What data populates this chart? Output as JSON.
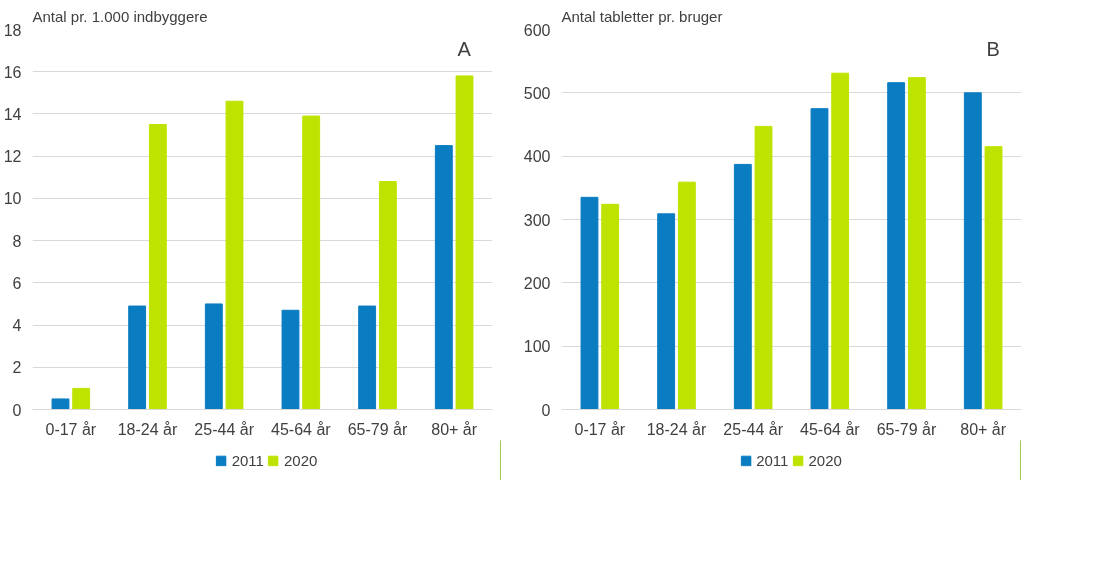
{
  "chart_data": [
    {
      "type": "bar",
      "ylabel": "Antal pr. 1.000 indbyggere",
      "annotations": [
        "A"
      ],
      "categories": [
        "0-17 år",
        "18-24 år",
        "25-44 år",
        "45-64 år",
        "65-79 år",
        "80+ år"
      ],
      "series": [
        {
          "name": "2011",
          "color": "#0a7cc1",
          "values": [
            0.5,
            4.9,
            5.0,
            4.7,
            4.9,
            12.5
          ]
        },
        {
          "name": "2020",
          "color": "#bfe300",
          "values": [
            1.0,
            13.5,
            14.6,
            13.9,
            10.8,
            15.8
          ]
        }
      ],
      "ylim": [
        0,
        18
      ],
      "yticks": [
        0,
        2,
        4,
        6,
        8,
        10,
        12,
        14,
        16,
        18
      ],
      "grid": "y",
      "legend": "bottom"
    },
    {
      "type": "bar",
      "ylabel": "Antal tabletter pr. bruger",
      "annotations": [
        "B"
      ],
      "categories": [
        "0-17 år",
        "18-24 år",
        "25-44 år",
        "45-64 år",
        "65-79 år",
        "80+ år"
      ],
      "series": [
        {
          "name": "2011",
          "color": "#0a7cc1",
          "values": [
            335,
            309,
            387,
            475,
            516,
            500
          ]
        },
        {
          "name": "2020",
          "color": "#bfe300",
          "values": [
            324,
            359,
            447,
            531,
            524,
            415
          ]
        }
      ],
      "ylim": [
        0,
        600
      ],
      "yticks": [
        0,
        100,
        200,
        300,
        400,
        500,
        600
      ],
      "grid": "y",
      "legend": "bottom"
    }
  ]
}
